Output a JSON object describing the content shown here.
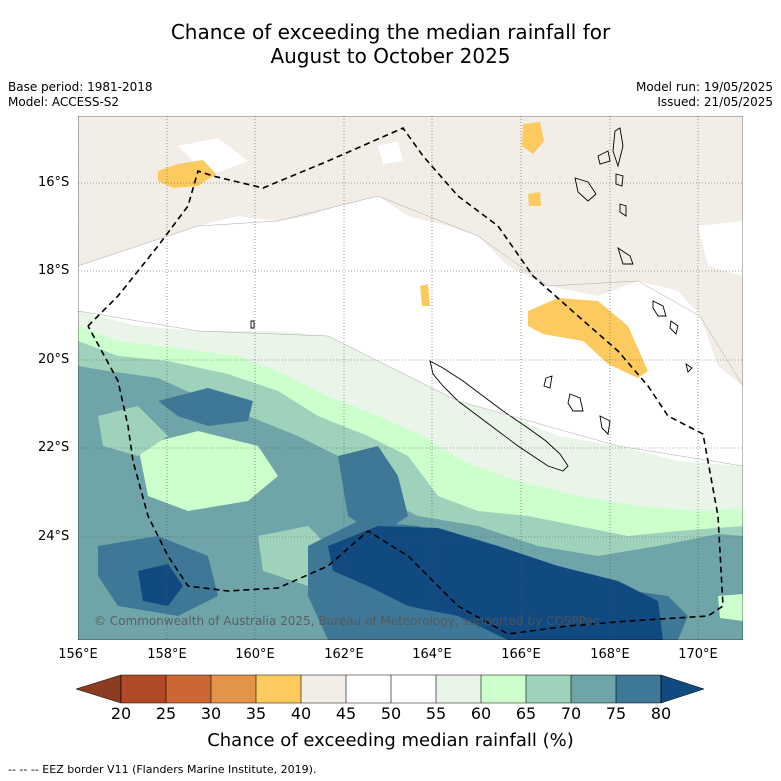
{
  "title_line1": "Chance of exceeding the median rainfall for",
  "title_line2": "August to October 2025",
  "meta_left": [
    "Base period: 1981-2018",
    "Model: ACCESS-S2"
  ],
  "meta_right": [
    "Model run: 19/05/2025",
    "Issued: 21/05/2025"
  ],
  "lat_ticks": [
    "16°S",
    "18°S",
    "20°S",
    "22°S",
    "24°S"
  ],
  "lon_ticks": [
    "156°E",
    "158°E",
    "160°E",
    "162°E",
    "164°E",
    "166°E",
    "168°E",
    "170°E"
  ],
  "copyright": "© Commonwealth of Australia 2025, Bureau of Meteorology, supported by COSPPac",
  "colorbar": {
    "ticks": [
      "20",
      "25",
      "30",
      "35",
      "40",
      "45",
      "50",
      "55",
      "60",
      "65",
      "70",
      "75",
      "80"
    ],
    "label": "Chance of exceeding median rainfall (%)",
    "colors": {
      "below20": "#8c3a20",
      "20-25": "#b04a26",
      "25-30": "#cc6633",
      "30-35": "#e2944a",
      "35-40": "#fdca60",
      "40-45": "#f2ede6",
      "45-50": "#ffffff",
      "50-55": "#ffffff",
      "55-60": "#e8f5e8",
      "60-65": "#ccffcc",
      "65-70": "#9ed2bb",
      "70-75": "#6fa5a8",
      "75-80": "#3f7896",
      "above80": "#104a80"
    }
  },
  "footnote": "--  --  -- EEZ border V11 (Flanders Marine Institute, 2019)."
}
